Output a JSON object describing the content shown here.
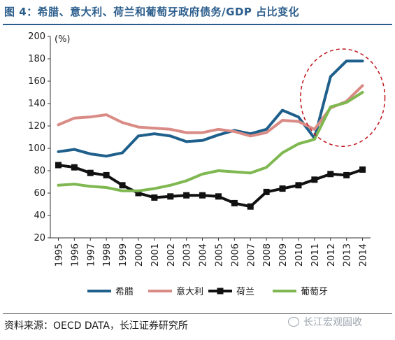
{
  "title": "图 4：希腊、意大利、荷兰和葡萄牙政府债务/GDP 占比变化",
  "source": "资料来源：OECD DATA，长江证券研究所",
  "watermark": "长江宏观固收",
  "chart_data": {
    "type": "line",
    "unit_label": "(%)",
    "ylim": [
      20,
      200
    ],
    "yticks": [
      20,
      40,
      60,
      80,
      100,
      120,
      140,
      160,
      180,
      200
    ],
    "x": [
      "1995",
      "1996",
      "1997",
      "1998",
      "1999",
      "2000",
      "2001",
      "2002",
      "2003",
      "2004",
      "2005",
      "2006",
      "2007",
      "2008",
      "2009",
      "2010",
      "2011",
      "2012",
      "2013",
      "2014"
    ],
    "legend_position": "bottom",
    "highlight": "dashed ellipse around 2011-2014",
    "series": [
      {
        "name": "希腊",
        "color": "#1f5f8b",
        "values": [
          97,
          99,
          95,
          93,
          96,
          111,
          113,
          111,
          106,
          107,
          112,
          116,
          113,
          117,
          134,
          128,
          109,
          164,
          178,
          178
        ]
      },
      {
        "name": "意大利",
        "color": "#d98b85",
        "values": [
          121,
          127,
          128,
          130,
          123,
          119,
          118,
          117,
          114,
          114,
          117,
          115,
          111,
          114,
          125,
          124,
          117,
          136,
          142,
          156
        ]
      },
      {
        "name": "荷兰",
        "color": "#111111",
        "values": [
          85,
          83,
          78,
          76,
          67,
          60,
          56,
          57,
          58,
          58,
          57,
          51,
          48,
          61,
          64,
          67,
          72,
          77,
          76,
          81
        ]
      },
      {
        "name": "葡萄牙",
        "color": "#7fb850",
        "values": [
          67,
          68,
          66,
          65,
          62,
          62,
          64,
          67,
          71,
          77,
          80,
          79,
          78,
          83,
          96,
          104,
          108,
          137,
          141,
          150
        ]
      }
    ]
  }
}
